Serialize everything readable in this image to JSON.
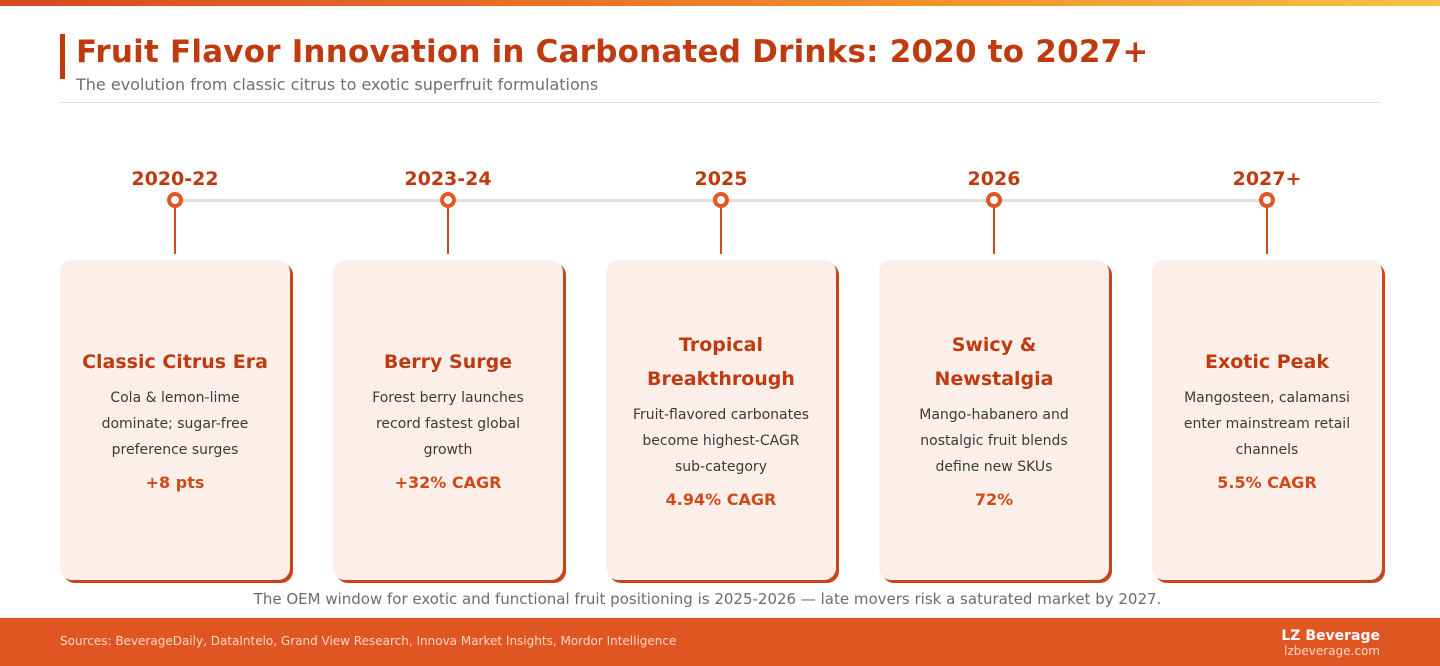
{
  "header": {
    "title": "Fruit Flavor Innovation in Carbonated Drinks: 2020 to 2027+",
    "subtitle": "The evolution from classic citrus to exotic superfruit formulations"
  },
  "stages": [
    {
      "year": "2020-22",
      "title_lines": [
        "Classic Citrus Era"
      ],
      "desc_lines": [
        "Cola & lemon-lime",
        "dominate; sugar-free",
        "preference surges"
      ],
      "metric": "+8 pts"
    },
    {
      "year": "2023-24",
      "title_lines": [
        "Berry Surge"
      ],
      "desc_lines": [
        "Forest berry launches",
        "record fastest global",
        "growth"
      ],
      "metric": "+32% CAGR"
    },
    {
      "year": "2025",
      "title_lines": [
        "Tropical",
        "Breakthrough"
      ],
      "desc_lines": [
        "Fruit-flavored carbonates",
        "become highest-CAGR",
        "sub-category"
      ],
      "metric": "4.94% CAGR"
    },
    {
      "year": "2026",
      "title_lines": [
        "Swicy &",
        "Newstalgia"
      ],
      "desc_lines": [
        "Mango-habanero and",
        "nostalgic fruit blends",
        "define new SKUs"
      ],
      "metric": "72%"
    },
    {
      "year": "2027+",
      "title_lines": [
        "Exotic Peak"
      ],
      "desc_lines": [
        "Mangosteen, calamansi",
        "enter mainstream retail",
        "channels"
      ],
      "metric": "5.5% CAGR"
    }
  ],
  "note": "The OEM window for exotic and functional fruit positioning is 2025-2026 — late movers risk a saturated market by 2027.",
  "footer": {
    "sources": "Sources: BeverageDaily, DataIntelo, Grand View Research, Innova Market Insights, Mordor Intelligence",
    "brand_name": "LZ Beverage",
    "brand_url": "lzbeverage.com"
  },
  "colors": {
    "accent": "#bf3b0f",
    "node": "#e25622",
    "card_bg": "#fcefea",
    "footer_bg": "#e05622"
  }
}
